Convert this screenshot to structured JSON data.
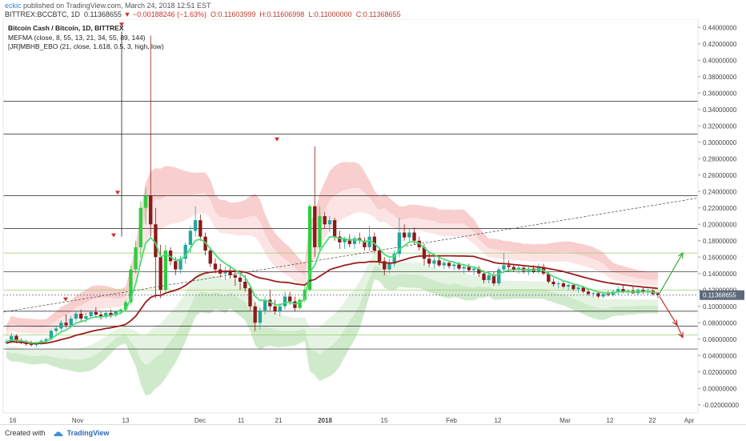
{
  "header": {
    "author": "eckic",
    "published": "published on TradingView.com, March 24, 2018 12:51 EST",
    "symbol": "BITTREX:BCCBTC, 1D",
    "last": "0.11368655",
    "change": "−0.00188246 (−1.63%)",
    "open": "O:0.11603999",
    "high": "H:0.11606998",
    "low": "L:0.11000000",
    "close": "C:0.11368655"
  },
  "legend": {
    "title": "Bitcoin Cash / Bitcoin, 1D, BITTREX",
    "indicator1": "MEFMA (close, 8, 55, 13, 21, 34, 55, 89, 144)",
    "indicator2": "[JR]MBHB_EBO (21, close, 1.618, 0.5, 3, high, low)"
  },
  "price_tag": "0.11368655",
  "footer": {
    "created": "Created with",
    "brand": "TradingView"
  },
  "colors": {
    "up_candle": "#26a69a",
    "up_candle_alt": "#2ecc40",
    "down_candle": "#8b1a1a",
    "ma_slow": "#9b1c1c",
    "ma_fast": "#4cdc74",
    "upper_band": "#f4a6a6",
    "lower_band": "#a8d8a0",
    "arrow_up": "#2ca02c",
    "arrow_down": "#b22222",
    "price_tag_bg": "#5d6a7a"
  },
  "chart_data": {
    "type": "candlestick",
    "title": "Bitcoin Cash / Bitcoin, 1D, BITTREX",
    "y_ticks": [
      "0.44000000",
      "0.42000000",
      "0.40000000",
      "0.38000000",
      "0.36000000",
      "0.34000000",
      "0.32000000",
      "0.30000000",
      "0.28000000",
      "0.26000000",
      "0.24000000",
      "0.22000000",
      "0.20000000",
      "0.18000000",
      "0.16000000",
      "0.14000000",
      "0.12000000",
      "0.10000000",
      "0.08000000",
      "0.06000000",
      "0.04000000",
      "0.02000000",
      "0.00000000",
      "-0.02000000"
    ],
    "x_ticks": [
      "16",
      "Nov",
      "13",
      "Dec",
      "11",
      "21",
      "2018",
      "15",
      "Feb",
      "12",
      "Mar",
      "12",
      "22",
      "Apr"
    ],
    "ylim": [
      -0.03,
      0.45
    ],
    "horizontal_levels": [
      0.35,
      0.31,
      0.235,
      0.195,
      0.165,
      0.142,
      0.12,
      0.094,
      0.076,
      0.065,
      0.048
    ],
    "candles": [
      {
        "o": 0.056,
        "h": 0.06,
        "l": 0.054,
        "c": 0.057
      },
      {
        "o": 0.057,
        "h": 0.068,
        "l": 0.055,
        "c": 0.064
      },
      {
        "o": 0.064,
        "h": 0.066,
        "l": 0.055,
        "c": 0.058
      },
      {
        "o": 0.058,
        "h": 0.061,
        "l": 0.054,
        "c": 0.056
      },
      {
        "o": 0.056,
        "h": 0.059,
        "l": 0.052,
        "c": 0.054
      },
      {
        "o": 0.054,
        "h": 0.058,
        "l": 0.051,
        "c": 0.053
      },
      {
        "o": 0.053,
        "h": 0.057,
        "l": 0.05,
        "c": 0.055
      },
      {
        "o": 0.055,
        "h": 0.06,
        "l": 0.053,
        "c": 0.058
      },
      {
        "o": 0.058,
        "h": 0.062,
        "l": 0.055,
        "c": 0.06
      },
      {
        "o": 0.06,
        "h": 0.072,
        "l": 0.058,
        "c": 0.07
      },
      {
        "o": 0.07,
        "h": 0.076,
        "l": 0.066,
        "c": 0.073
      },
      {
        "o": 0.073,
        "h": 0.083,
        "l": 0.07,
        "c": 0.08
      },
      {
        "o": 0.08,
        "h": 0.09,
        "l": 0.074,
        "c": 0.077
      },
      {
        "o": 0.077,
        "h": 0.088,
        "l": 0.075,
        "c": 0.085
      },
      {
        "o": 0.085,
        "h": 0.094,
        "l": 0.082,
        "c": 0.091
      },
      {
        "o": 0.091,
        "h": 0.096,
        "l": 0.082,
        "c": 0.085
      },
      {
        "o": 0.085,
        "h": 0.092,
        "l": 0.08,
        "c": 0.088
      },
      {
        "o": 0.088,
        "h": 0.095,
        "l": 0.086,
        "c": 0.093
      },
      {
        "o": 0.093,
        "h": 0.099,
        "l": 0.086,
        "c": 0.09
      },
      {
        "o": 0.09,
        "h": 0.094,
        "l": 0.084,
        "c": 0.087
      },
      {
        "o": 0.087,
        "h": 0.095,
        "l": 0.085,
        "c": 0.092
      },
      {
        "o": 0.092,
        "h": 0.096,
        "l": 0.086,
        "c": 0.089
      },
      {
        "o": 0.089,
        "h": 0.095,
        "l": 0.087,
        "c": 0.094
      },
      {
        "o": 0.094,
        "h": 0.098,
        "l": 0.09,
        "c": 0.096
      },
      {
        "o": 0.096,
        "h": 0.108,
        "l": 0.094,
        "c": 0.105
      },
      {
        "o": 0.105,
        "h": 0.15,
        "l": 0.102,
        "c": 0.145
      },
      {
        "o": 0.145,
        "h": 0.18,
        "l": 0.14,
        "c": 0.172
      },
      {
        "o": 0.172,
        "h": 0.228,
        "l": 0.16,
        "c": 0.22
      },
      {
        "o": 0.22,
        "h": 0.245,
        "l": 0.2,
        "c": 0.235
      },
      {
        "o": 0.235,
        "h": 0.43,
        "l": 0.185,
        "c": 0.2
      },
      {
        "o": 0.2,
        "h": 0.22,
        "l": 0.11,
        "c": 0.16
      },
      {
        "o": 0.16,
        "h": 0.175,
        "l": 0.11,
        "c": 0.12
      },
      {
        "o": 0.12,
        "h": 0.175,
        "l": 0.115,
        "c": 0.168
      },
      {
        "o": 0.168,
        "h": 0.172,
        "l": 0.15,
        "c": 0.155
      },
      {
        "o": 0.155,
        "h": 0.16,
        "l": 0.138,
        "c": 0.145
      },
      {
        "o": 0.145,
        "h": 0.162,
        "l": 0.14,
        "c": 0.158
      },
      {
        "o": 0.158,
        "h": 0.178,
        "l": 0.152,
        "c": 0.175
      },
      {
        "o": 0.175,
        "h": 0.198,
        "l": 0.165,
        "c": 0.192
      },
      {
        "o": 0.192,
        "h": 0.222,
        "l": 0.185,
        "c": 0.205
      },
      {
        "o": 0.205,
        "h": 0.212,
        "l": 0.18,
        "c": 0.185
      },
      {
        "o": 0.185,
        "h": 0.19,
        "l": 0.162,
        "c": 0.168
      },
      {
        "o": 0.168,
        "h": 0.172,
        "l": 0.148,
        "c": 0.152
      },
      {
        "o": 0.152,
        "h": 0.158,
        "l": 0.14,
        "c": 0.145
      },
      {
        "o": 0.145,
        "h": 0.152,
        "l": 0.135,
        "c": 0.14
      },
      {
        "o": 0.14,
        "h": 0.148,
        "l": 0.132,
        "c": 0.142
      },
      {
        "o": 0.142,
        "h": 0.15,
        "l": 0.134,
        "c": 0.138
      },
      {
        "o": 0.138,
        "h": 0.145,
        "l": 0.125,
        "c": 0.135
      },
      {
        "o": 0.135,
        "h": 0.142,
        "l": 0.12,
        "c": 0.13
      },
      {
        "o": 0.13,
        "h": 0.138,
        "l": 0.118,
        "c": 0.122
      },
      {
        "o": 0.122,
        "h": 0.125,
        "l": 0.095,
        "c": 0.1
      },
      {
        "o": 0.1,
        "h": 0.105,
        "l": 0.07,
        "c": 0.08
      },
      {
        "o": 0.08,
        "h": 0.098,
        "l": 0.072,
        "c": 0.095
      },
      {
        "o": 0.095,
        "h": 0.112,
        "l": 0.09,
        "c": 0.108
      },
      {
        "o": 0.108,
        "h": 0.12,
        "l": 0.095,
        "c": 0.1
      },
      {
        "o": 0.1,
        "h": 0.108,
        "l": 0.09,
        "c": 0.094
      },
      {
        "o": 0.094,
        "h": 0.104,
        "l": 0.088,
        "c": 0.1
      },
      {
        "o": 0.1,
        "h": 0.118,
        "l": 0.096,
        "c": 0.112
      },
      {
        "o": 0.112,
        "h": 0.118,
        "l": 0.102,
        "c": 0.106
      },
      {
        "o": 0.106,
        "h": 0.112,
        "l": 0.094,
        "c": 0.098
      },
      {
        "o": 0.098,
        "h": 0.11,
        "l": 0.096,
        "c": 0.108
      },
      {
        "o": 0.108,
        "h": 0.125,
        "l": 0.105,
        "c": 0.12
      },
      {
        "o": 0.12,
        "h": 0.225,
        "l": 0.118,
        "c": 0.222
      },
      {
        "o": 0.222,
        "h": 0.295,
        "l": 0.16,
        "c": 0.172
      },
      {
        "o": 0.172,
        "h": 0.222,
        "l": 0.168,
        "c": 0.21
      },
      {
        "o": 0.21,
        "h": 0.215,
        "l": 0.195,
        "c": 0.2
      },
      {
        "o": 0.2,
        "h": 0.21,
        "l": 0.19,
        "c": 0.205
      },
      {
        "o": 0.205,
        "h": 0.208,
        "l": 0.18,
        "c": 0.185
      },
      {
        "o": 0.185,
        "h": 0.192,
        "l": 0.17,
        "c": 0.178
      },
      {
        "o": 0.178,
        "h": 0.185,
        "l": 0.17,
        "c": 0.182
      },
      {
        "o": 0.182,
        "h": 0.188,
        "l": 0.172,
        "c": 0.176
      },
      {
        "o": 0.176,
        "h": 0.186,
        "l": 0.17,
        "c": 0.183
      },
      {
        "o": 0.183,
        "h": 0.19,
        "l": 0.176,
        "c": 0.18
      },
      {
        "o": 0.18,
        "h": 0.184,
        "l": 0.168,
        "c": 0.172
      },
      {
        "o": 0.172,
        "h": 0.198,
        "l": 0.168,
        "c": 0.185
      },
      {
        "o": 0.185,
        "h": 0.19,
        "l": 0.165,
        "c": 0.168
      },
      {
        "o": 0.168,
        "h": 0.172,
        "l": 0.15,
        "c": 0.155
      },
      {
        "o": 0.155,
        "h": 0.16,
        "l": 0.138,
        "c": 0.145
      },
      {
        "o": 0.145,
        "h": 0.158,
        "l": 0.14,
        "c": 0.152
      },
      {
        "o": 0.152,
        "h": 0.168,
        "l": 0.148,
        "c": 0.164
      },
      {
        "o": 0.164,
        "h": 0.208,
        "l": 0.16,
        "c": 0.19
      },
      {
        "o": 0.19,
        "h": 0.2,
        "l": 0.18,
        "c": 0.184
      },
      {
        "o": 0.184,
        "h": 0.195,
        "l": 0.178,
        "c": 0.19
      },
      {
        "o": 0.19,
        "h": 0.196,
        "l": 0.175,
        "c": 0.18
      },
      {
        "o": 0.18,
        "h": 0.185,
        "l": 0.168,
        "c": 0.172
      },
      {
        "o": 0.172,
        "h": 0.176,
        "l": 0.15,
        "c": 0.158
      },
      {
        "o": 0.158,
        "h": 0.165,
        "l": 0.148,
        "c": 0.152
      },
      {
        "o": 0.152,
        "h": 0.16,
        "l": 0.146,
        "c": 0.156
      },
      {
        "o": 0.156,
        "h": 0.16,
        "l": 0.148,
        "c": 0.15
      },
      {
        "o": 0.15,
        "h": 0.156,
        "l": 0.145,
        "c": 0.153
      },
      {
        "o": 0.153,
        "h": 0.156,
        "l": 0.146,
        "c": 0.149
      },
      {
        "o": 0.149,
        "h": 0.154,
        "l": 0.144,
        "c": 0.151
      },
      {
        "o": 0.151,
        "h": 0.154,
        "l": 0.144,
        "c": 0.146
      },
      {
        "o": 0.146,
        "h": 0.15,
        "l": 0.14,
        "c": 0.148
      },
      {
        "o": 0.148,
        "h": 0.152,
        "l": 0.142,
        "c": 0.144
      },
      {
        "o": 0.144,
        "h": 0.148,
        "l": 0.138,
        "c": 0.146
      },
      {
        "o": 0.146,
        "h": 0.149,
        "l": 0.136,
        "c": 0.14
      },
      {
        "o": 0.14,
        "h": 0.144,
        "l": 0.128,
        "c": 0.132
      },
      {
        "o": 0.132,
        "h": 0.142,
        "l": 0.128,
        "c": 0.138
      },
      {
        "o": 0.138,
        "h": 0.142,
        "l": 0.125,
        "c": 0.128
      },
      {
        "o": 0.128,
        "h": 0.148,
        "l": 0.125,
        "c": 0.145
      },
      {
        "o": 0.145,
        "h": 0.165,
        "l": 0.14,
        "c": 0.15
      },
      {
        "o": 0.15,
        "h": 0.156,
        "l": 0.142,
        "c": 0.148
      },
      {
        "o": 0.148,
        "h": 0.152,
        "l": 0.142,
        "c": 0.145
      },
      {
        "o": 0.145,
        "h": 0.15,
        "l": 0.14,
        "c": 0.147
      },
      {
        "o": 0.147,
        "h": 0.15,
        "l": 0.14,
        "c": 0.143
      },
      {
        "o": 0.143,
        "h": 0.148,
        "l": 0.138,
        "c": 0.146
      },
      {
        "o": 0.146,
        "h": 0.15,
        "l": 0.14,
        "c": 0.142
      },
      {
        "o": 0.142,
        "h": 0.152,
        "l": 0.14,
        "c": 0.148
      },
      {
        "o": 0.148,
        "h": 0.152,
        "l": 0.138,
        "c": 0.14
      },
      {
        "o": 0.14,
        "h": 0.142,
        "l": 0.128,
        "c": 0.13
      },
      {
        "o": 0.13,
        "h": 0.134,
        "l": 0.124,
        "c": 0.127
      },
      {
        "o": 0.127,
        "h": 0.131,
        "l": 0.122,
        "c": 0.128
      },
      {
        "o": 0.128,
        "h": 0.13,
        "l": 0.122,
        "c": 0.124
      },
      {
        "o": 0.124,
        "h": 0.128,
        "l": 0.12,
        "c": 0.126
      },
      {
        "o": 0.126,
        "h": 0.128,
        "l": 0.119,
        "c": 0.121
      },
      {
        "o": 0.121,
        "h": 0.125,
        "l": 0.117,
        "c": 0.123
      },
      {
        "o": 0.123,
        "h": 0.125,
        "l": 0.116,
        "c": 0.118
      },
      {
        "o": 0.118,
        "h": 0.121,
        "l": 0.113,
        "c": 0.115
      },
      {
        "o": 0.115,
        "h": 0.118,
        "l": 0.111,
        "c": 0.116
      },
      {
        "o": 0.116,
        "h": 0.118,
        "l": 0.11,
        "c": 0.112
      },
      {
        "o": 0.112,
        "h": 0.117,
        "l": 0.11,
        "c": 0.115
      },
      {
        "o": 0.115,
        "h": 0.119,
        "l": 0.112,
        "c": 0.114
      },
      {
        "o": 0.114,
        "h": 0.12,
        "l": 0.112,
        "c": 0.118
      },
      {
        "o": 0.118,
        "h": 0.124,
        "l": 0.114,
        "c": 0.121
      },
      {
        "o": 0.121,
        "h": 0.126,
        "l": 0.116,
        "c": 0.117
      },
      {
        "o": 0.117,
        "h": 0.121,
        "l": 0.114,
        "c": 0.119
      },
      {
        "o": 0.119,
        "h": 0.124,
        "l": 0.115,
        "c": 0.116
      },
      {
        "o": 0.116,
        "h": 0.122,
        "l": 0.114,
        "c": 0.12
      },
      {
        "o": 0.12,
        "h": 0.124,
        "l": 0.115,
        "c": 0.117
      },
      {
        "o": 0.117,
        "h": 0.122,
        "l": 0.114,
        "c": 0.119
      },
      {
        "o": 0.119,
        "h": 0.121,
        "l": 0.113,
        "c": 0.115
      },
      {
        "o": 0.116,
        "h": 0.118,
        "l": 0.11,
        "c": 0.114
      }
    ]
  }
}
